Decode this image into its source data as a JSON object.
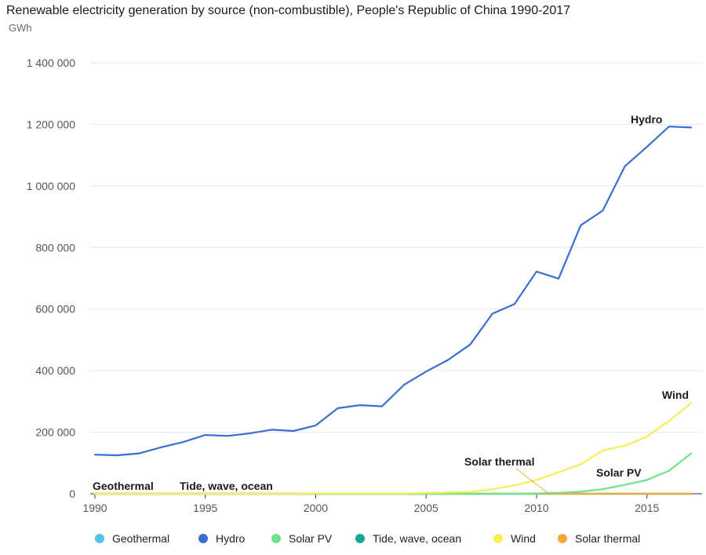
{
  "header": {
    "title": "Renewable electricity generation by source (non-combustible), People's Republic of China 1990-2017",
    "unit": "GWh"
  },
  "legend": [
    {
      "label": "Geothermal",
      "color": "#4fc3e8",
      "icon": "circle"
    },
    {
      "label": "Hydro",
      "color": "#3a6fd1",
      "icon": "circle"
    },
    {
      "label": "Solar PV",
      "color": "#6ee389",
      "icon": "circle"
    },
    {
      "label": "Tide, wave, ocean",
      "color": "#19a69a",
      "icon": "circle"
    },
    {
      "label": "Wind",
      "color": "#f7ee55",
      "icon": "circle"
    },
    {
      "label": "Solar thermal",
      "color": "#f5a83a",
      "icon": "circle"
    }
  ],
  "chart_data": {
    "type": "line",
    "title": "Renewable electricity generation by source (non-combustible), People's Republic of China 1990-2017",
    "ylabel": "GWh",
    "xlabel": "",
    "ylim": [
      0,
      1400000
    ],
    "xlim": [
      1990,
      2017
    ],
    "yticks": [
      0,
      200000,
      400000,
      600000,
      800000,
      1000000,
      1200000,
      1400000
    ],
    "ytick_labels": [
      "0",
      "200 000",
      "400 000",
      "600 000",
      "800 000",
      "1 000 000",
      "1 200 000",
      "1 400 000"
    ],
    "xticks": [
      1990,
      1995,
      2000,
      2005,
      2010,
      2015
    ],
    "xtick_labels": [
      "1990",
      "1995",
      "2000",
      "2005",
      "2010",
      "2015"
    ],
    "grid": "horizontal",
    "legend_position": "bottom",
    "x": [
      1990,
      1991,
      1992,
      1993,
      1994,
      1995,
      1996,
      1997,
      1998,
      1999,
      2000,
      2001,
      2002,
      2003,
      2004,
      2005,
      2006,
      2007,
      2008,
      2009,
      2010,
      2011,
      2012,
      2013,
      2014,
      2015,
      2016,
      2017
    ],
    "series": [
      {
        "name": "Geothermal",
        "color": "#4fc3e8",
        "values": [
          0,
          0,
          0,
          0,
          0,
          0,
          0,
          0,
          0,
          0,
          0,
          0,
          0,
          0,
          0,
          0,
          0,
          0,
          0,
          0,
          0,
          0,
          0,
          0,
          0,
          0,
          0,
          0
        ]
      },
      {
        "name": "Hydro",
        "color": "#3a6fd1",
        "values": [
          127000,
          125000,
          131000,
          151000,
          168000,
          191000,
          188000,
          196000,
          208000,
          204000,
          222000,
          278000,
          288000,
          284000,
          354000,
          397000,
          435000,
          485000,
          585000,
          616000,
          722000,
          699000,
          872000,
          920000,
          1064000,
          1127000,
          1193000,
          1190000
        ]
      },
      {
        "name": "Solar PV",
        "color": "#6ee389",
        "values": [
          0,
          0,
          0,
          0,
          0,
          0,
          0,
          0,
          0,
          0,
          0,
          0,
          0,
          0,
          0,
          0,
          0,
          0,
          0,
          0,
          1000,
          3000,
          7000,
          15000,
          29000,
          45000,
          75000,
          131000
        ]
      },
      {
        "name": "Tide, wave, ocean",
        "color": "#19a69a",
        "values": [
          0,
          0,
          0,
          0,
          0,
          0,
          0,
          0,
          0,
          0,
          0,
          0,
          0,
          0,
          0,
          0,
          0,
          0,
          0,
          0,
          0,
          0,
          0,
          0,
          0,
          0,
          0,
          0
        ]
      },
      {
        "name": "Wind",
        "color": "#f7ee55",
        "values": [
          0,
          0,
          0,
          0,
          0,
          0,
          0,
          0,
          0,
          0,
          1000,
          1000,
          1000,
          1000,
          1000,
          2000,
          4000,
          6000,
          15000,
          27000,
          45000,
          70000,
          96000,
          141000,
          156000,
          186000,
          237000,
          295000
        ]
      },
      {
        "name": "Solar thermal",
        "color": "#f5a83a",
        "values": [
          0,
          0,
          0,
          0,
          0,
          0,
          0,
          0,
          0,
          0,
          0,
          0,
          0,
          0,
          0,
          0,
          0,
          0,
          0,
          0,
          0,
          0,
          0,
          0,
          0,
          0,
          0,
          0
        ]
      }
    ],
    "annotations": [
      {
        "text": "Hydro",
        "series": "Hydro"
      },
      {
        "text": "Wind",
        "series": "Wind"
      },
      {
        "text": "Solar PV",
        "series": "Solar PV"
      },
      {
        "text": "Solar thermal",
        "series": "Solar thermal"
      },
      {
        "text": "Geothermal",
        "series": "Geothermal"
      },
      {
        "text": "Tide, wave, ocean",
        "series": "Tide, wave, ocean"
      }
    ]
  }
}
